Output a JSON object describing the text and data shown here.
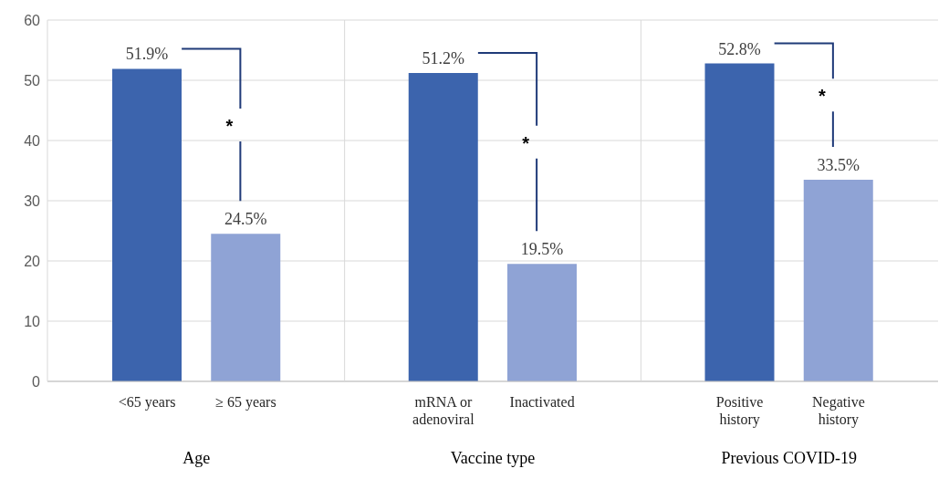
{
  "chart_data": {
    "type": "bar",
    "categories": [
      "<65 years",
      "≥ 65 years",
      null,
      "mRNA or adenoviral",
      "Inactivated",
      null,
      "Positive history",
      "Negative history"
    ],
    "values": [
      51.9,
      24.5,
      null,
      51.2,
      19.5,
      null,
      52.8,
      33.5
    ],
    "colors": [
      "#3c64ad",
      "#8fa3d5",
      null,
      "#3c64ad",
      "#8fa3d5",
      null,
      "#3c64ad",
      "#8fa3d5"
    ],
    "value_labels": [
      "51.9%",
      "24.5%",
      null,
      "51.2%",
      "19.5%",
      null,
      "52.8%",
      "33.5%"
    ],
    "annotations": [
      "Age",
      "Vaccine type",
      "Previous COVID-19",
      "*",
      "*",
      "*"
    ],
    "ylim": [
      0,
      60
    ],
    "yticks": [
      0,
      10,
      20,
      30,
      40,
      50,
      60
    ],
    "grid": true
  }
}
